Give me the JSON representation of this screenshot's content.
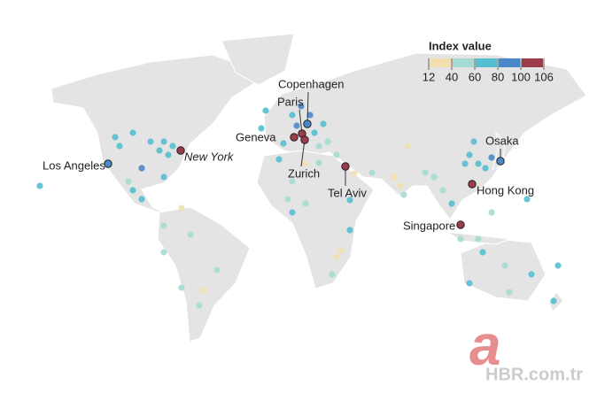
{
  "legend": {
    "title": "Index value",
    "ticks": [
      12,
      40,
      60,
      80,
      100,
      106
    ],
    "colors": [
      "#f1dfb0",
      "#a5dbd2",
      "#54bfcf",
      "#4b88c7",
      "#9c3b4a"
    ]
  },
  "cities": [
    {
      "label": "Copenhagen",
      "value": 85
    },
    {
      "label": "Paris",
      "value": 104
    },
    {
      "label": "Geneva",
      "value": 102
    },
    {
      "label": "Zurich",
      "value": 103
    },
    {
      "label": "Los Angeles",
      "value": 88
    },
    {
      "label": "New York",
      "value": 100
    },
    {
      "label": "Tel Aviv",
      "value": 106
    },
    {
      "label": "Osaka",
      "value": 90
    },
    {
      "label": "Hong Kong",
      "value": 100
    },
    {
      "label": "Singapore",
      "value": 104
    }
  ],
  "dots": [
    60,
    65,
    60,
    65,
    80,
    60,
    60,
    65,
    70,
    75,
    70,
    60,
    65,
    45,
    30,
    50,
    55,
    45,
    50,
    55,
    30,
    50,
    65,
    75,
    80,
    85,
    70,
    70,
    55,
    45,
    60,
    35,
    40,
    55,
    35,
    45,
    30,
    30,
    30,
    40,
    65,
    60,
    30,
    35,
    55,
    50,
    65,
    45,
    55,
    45,
    50,
    55,
    60,
    45,
    50,
    45,
    65,
    70,
    75,
    70,
    80,
    65,
    60,
    60,
    60,
    50,
    65,
    60,
    70,
    75,
    55,
    75,
    90
  ],
  "watermark": {
    "logo": "a",
    "text": "HBR.com.tr"
  }
}
